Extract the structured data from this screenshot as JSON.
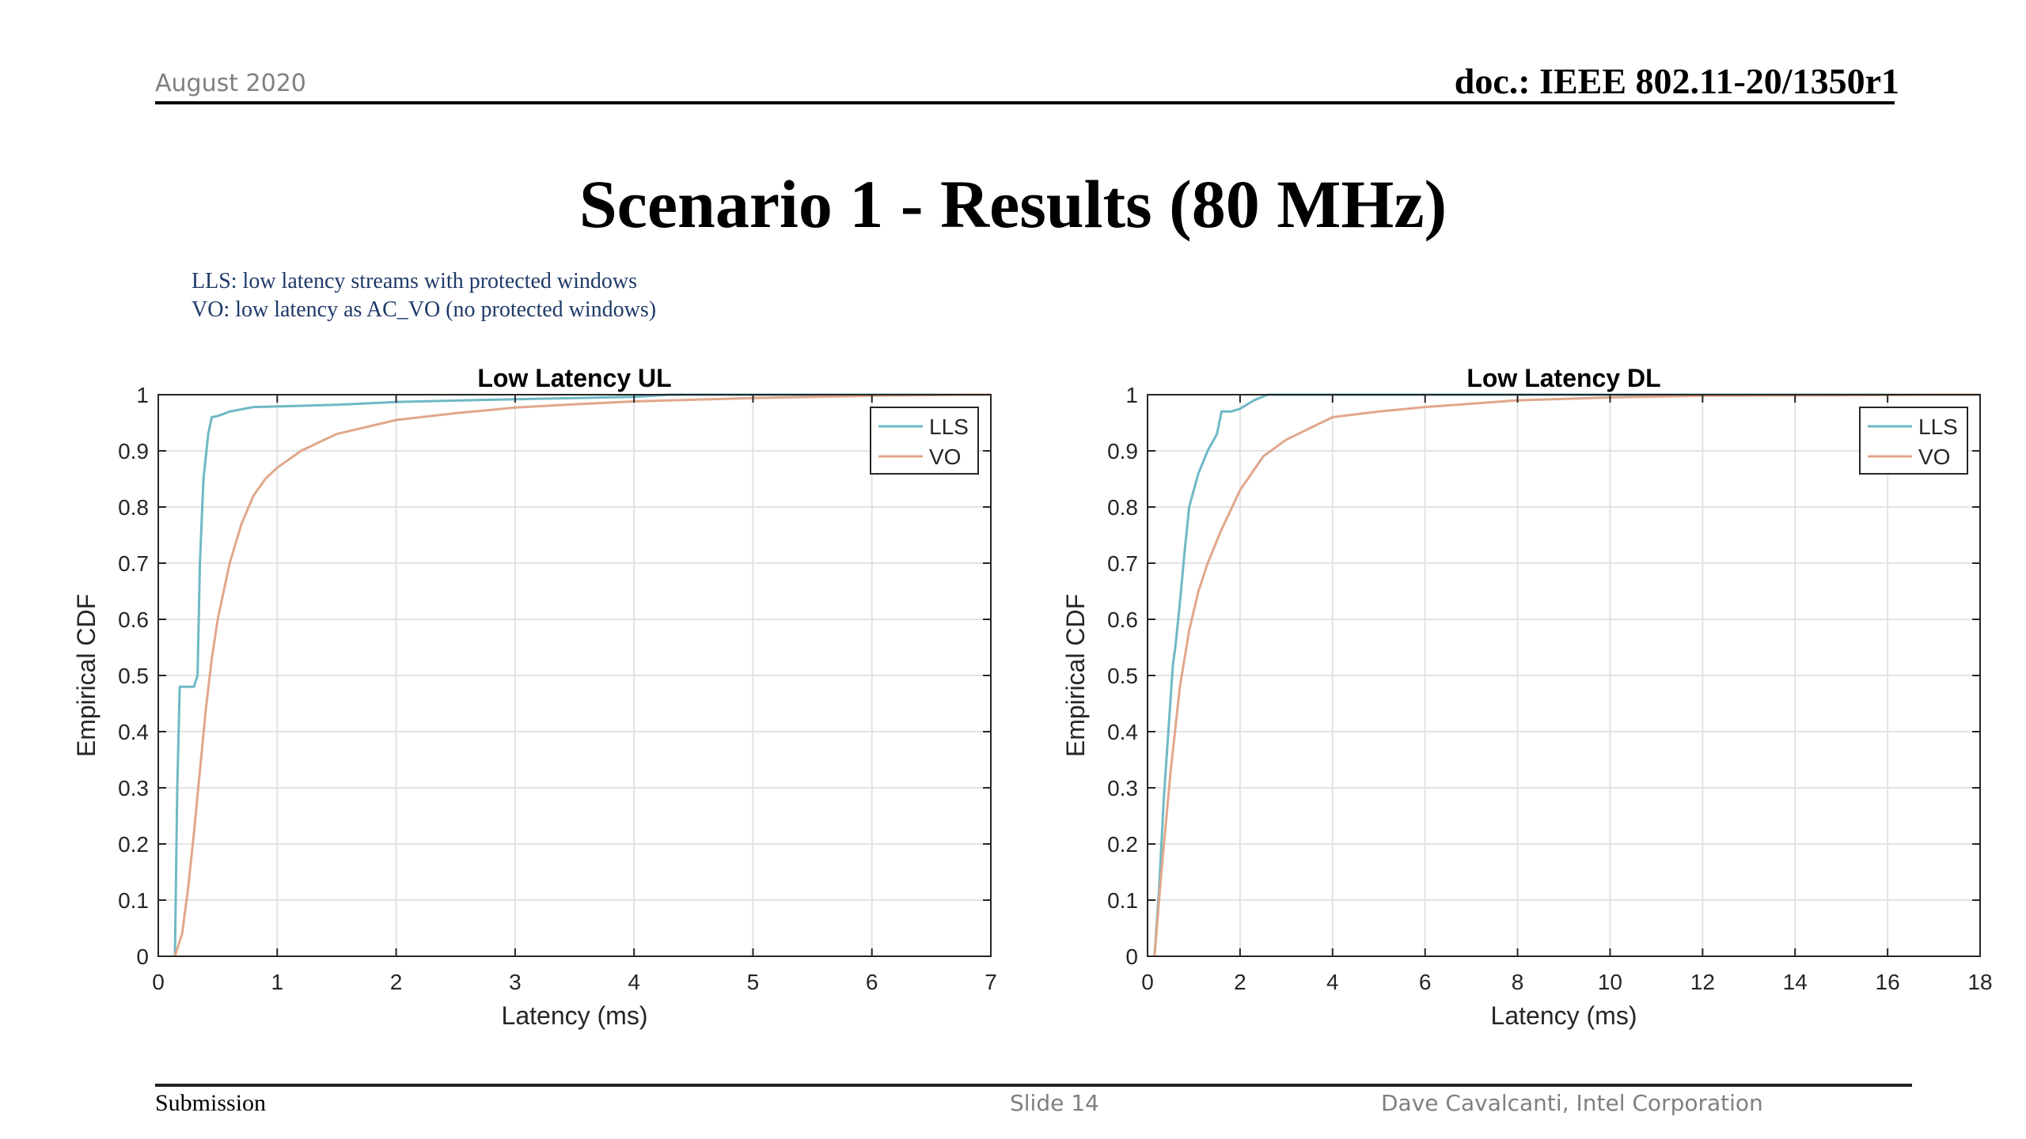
{
  "header": {
    "date": "August 2020",
    "doc_id": "doc.: IEEE 802.11-20/1350r1"
  },
  "slide": {
    "title": "Scenario 1 - Results (80 MHz)",
    "notes": [
      "LLS: low latency streams with protected windows",
      "VO: low latency as AC_VO (no protected windows)"
    ]
  },
  "footer": {
    "left": "Submission",
    "center": "Slide 14",
    "right": "Dave Cavalcanti, Intel Corporation"
  },
  "colors": {
    "LLS": "#6fb8c6",
    "VO": "#e1a78a"
  },
  "chart_data": [
    {
      "type": "line",
      "title": "Low Latency UL",
      "xlabel": "Latency (ms)",
      "ylabel": "Empirical CDF",
      "xlim": [
        0,
        7
      ],
      "ylim": [
        0,
        1
      ],
      "xticks": [
        0,
        1,
        2,
        3,
        4,
        5,
        6,
        7
      ],
      "yticks": [
        0,
        0.1,
        0.2,
        0.3,
        0.4,
        0.5,
        0.6,
        0.7,
        0.8,
        0.9,
        1
      ],
      "grid": true,
      "legend": "top-right",
      "series": [
        {
          "name": "LLS",
          "x": [
            0.14,
            0.16,
            0.18,
            0.2,
            0.3,
            0.33,
            0.35,
            0.38,
            0.42,
            0.45,
            0.5,
            0.6,
            0.8,
            1.0,
            1.5,
            2.0,
            3.0,
            4.0,
            4.3
          ],
          "y": [
            0,
            0.3,
            0.48,
            0.48,
            0.48,
            0.5,
            0.7,
            0.85,
            0.93,
            0.96,
            0.962,
            0.97,
            0.978,
            0.979,
            0.982,
            0.987,
            0.992,
            0.996,
            1.0
          ]
        },
        {
          "name": "VO",
          "x": [
            0.14,
            0.2,
            0.25,
            0.3,
            0.35,
            0.4,
            0.45,
            0.5,
            0.6,
            0.7,
            0.8,
            0.9,
            1.0,
            1.2,
            1.5,
            2.0,
            2.5,
            3.0,
            3.5,
            4.0,
            5.0,
            6.0,
            6.8
          ],
          "y": [
            0,
            0.04,
            0.12,
            0.22,
            0.33,
            0.44,
            0.53,
            0.6,
            0.7,
            0.77,
            0.82,
            0.85,
            0.87,
            0.9,
            0.93,
            0.955,
            0.967,
            0.977,
            0.983,
            0.988,
            0.994,
            0.998,
            1.0
          ]
        }
      ]
    },
    {
      "type": "line",
      "title": "Low Latency DL",
      "xlabel": "Latency (ms)",
      "ylabel": "Empirical CDF",
      "xlim": [
        0,
        18
      ],
      "ylim": [
        0,
        1
      ],
      "xticks": [
        0,
        2,
        4,
        6,
        8,
        10,
        12,
        14,
        16,
        18
      ],
      "yticks": [
        0,
        0.1,
        0.2,
        0.3,
        0.4,
        0.5,
        0.6,
        0.7,
        0.8,
        0.9,
        1
      ],
      "grid": true,
      "legend": "top-right",
      "series": [
        {
          "name": "LLS",
          "x": [
            0.15,
            0.25,
            0.35,
            0.45,
            0.55,
            0.6,
            0.7,
            0.8,
            0.9,
            1.0,
            1.1,
            1.3,
            1.5,
            1.6,
            1.8,
            2.0,
            2.3,
            2.6
          ],
          "y": [
            0,
            0.12,
            0.28,
            0.4,
            0.52,
            0.55,
            0.63,
            0.72,
            0.8,
            0.83,
            0.86,
            0.9,
            0.93,
            0.97,
            0.97,
            0.975,
            0.99,
            1.0
          ]
        },
        {
          "name": "VO",
          "x": [
            0.15,
            0.3,
            0.5,
            0.7,
            0.9,
            1.1,
            1.3,
            1.6,
            2.0,
            2.5,
            3.0,
            3.5,
            4.0,
            5.0,
            6.0,
            8.0,
            10.0,
            12.0,
            15.0,
            17.2
          ],
          "y": [
            0,
            0.15,
            0.33,
            0.48,
            0.58,
            0.65,
            0.7,
            0.76,
            0.83,
            0.89,
            0.92,
            0.94,
            0.96,
            0.97,
            0.978,
            0.99,
            0.995,
            0.998,
            0.999,
            1.0
          ]
        }
      ]
    }
  ]
}
